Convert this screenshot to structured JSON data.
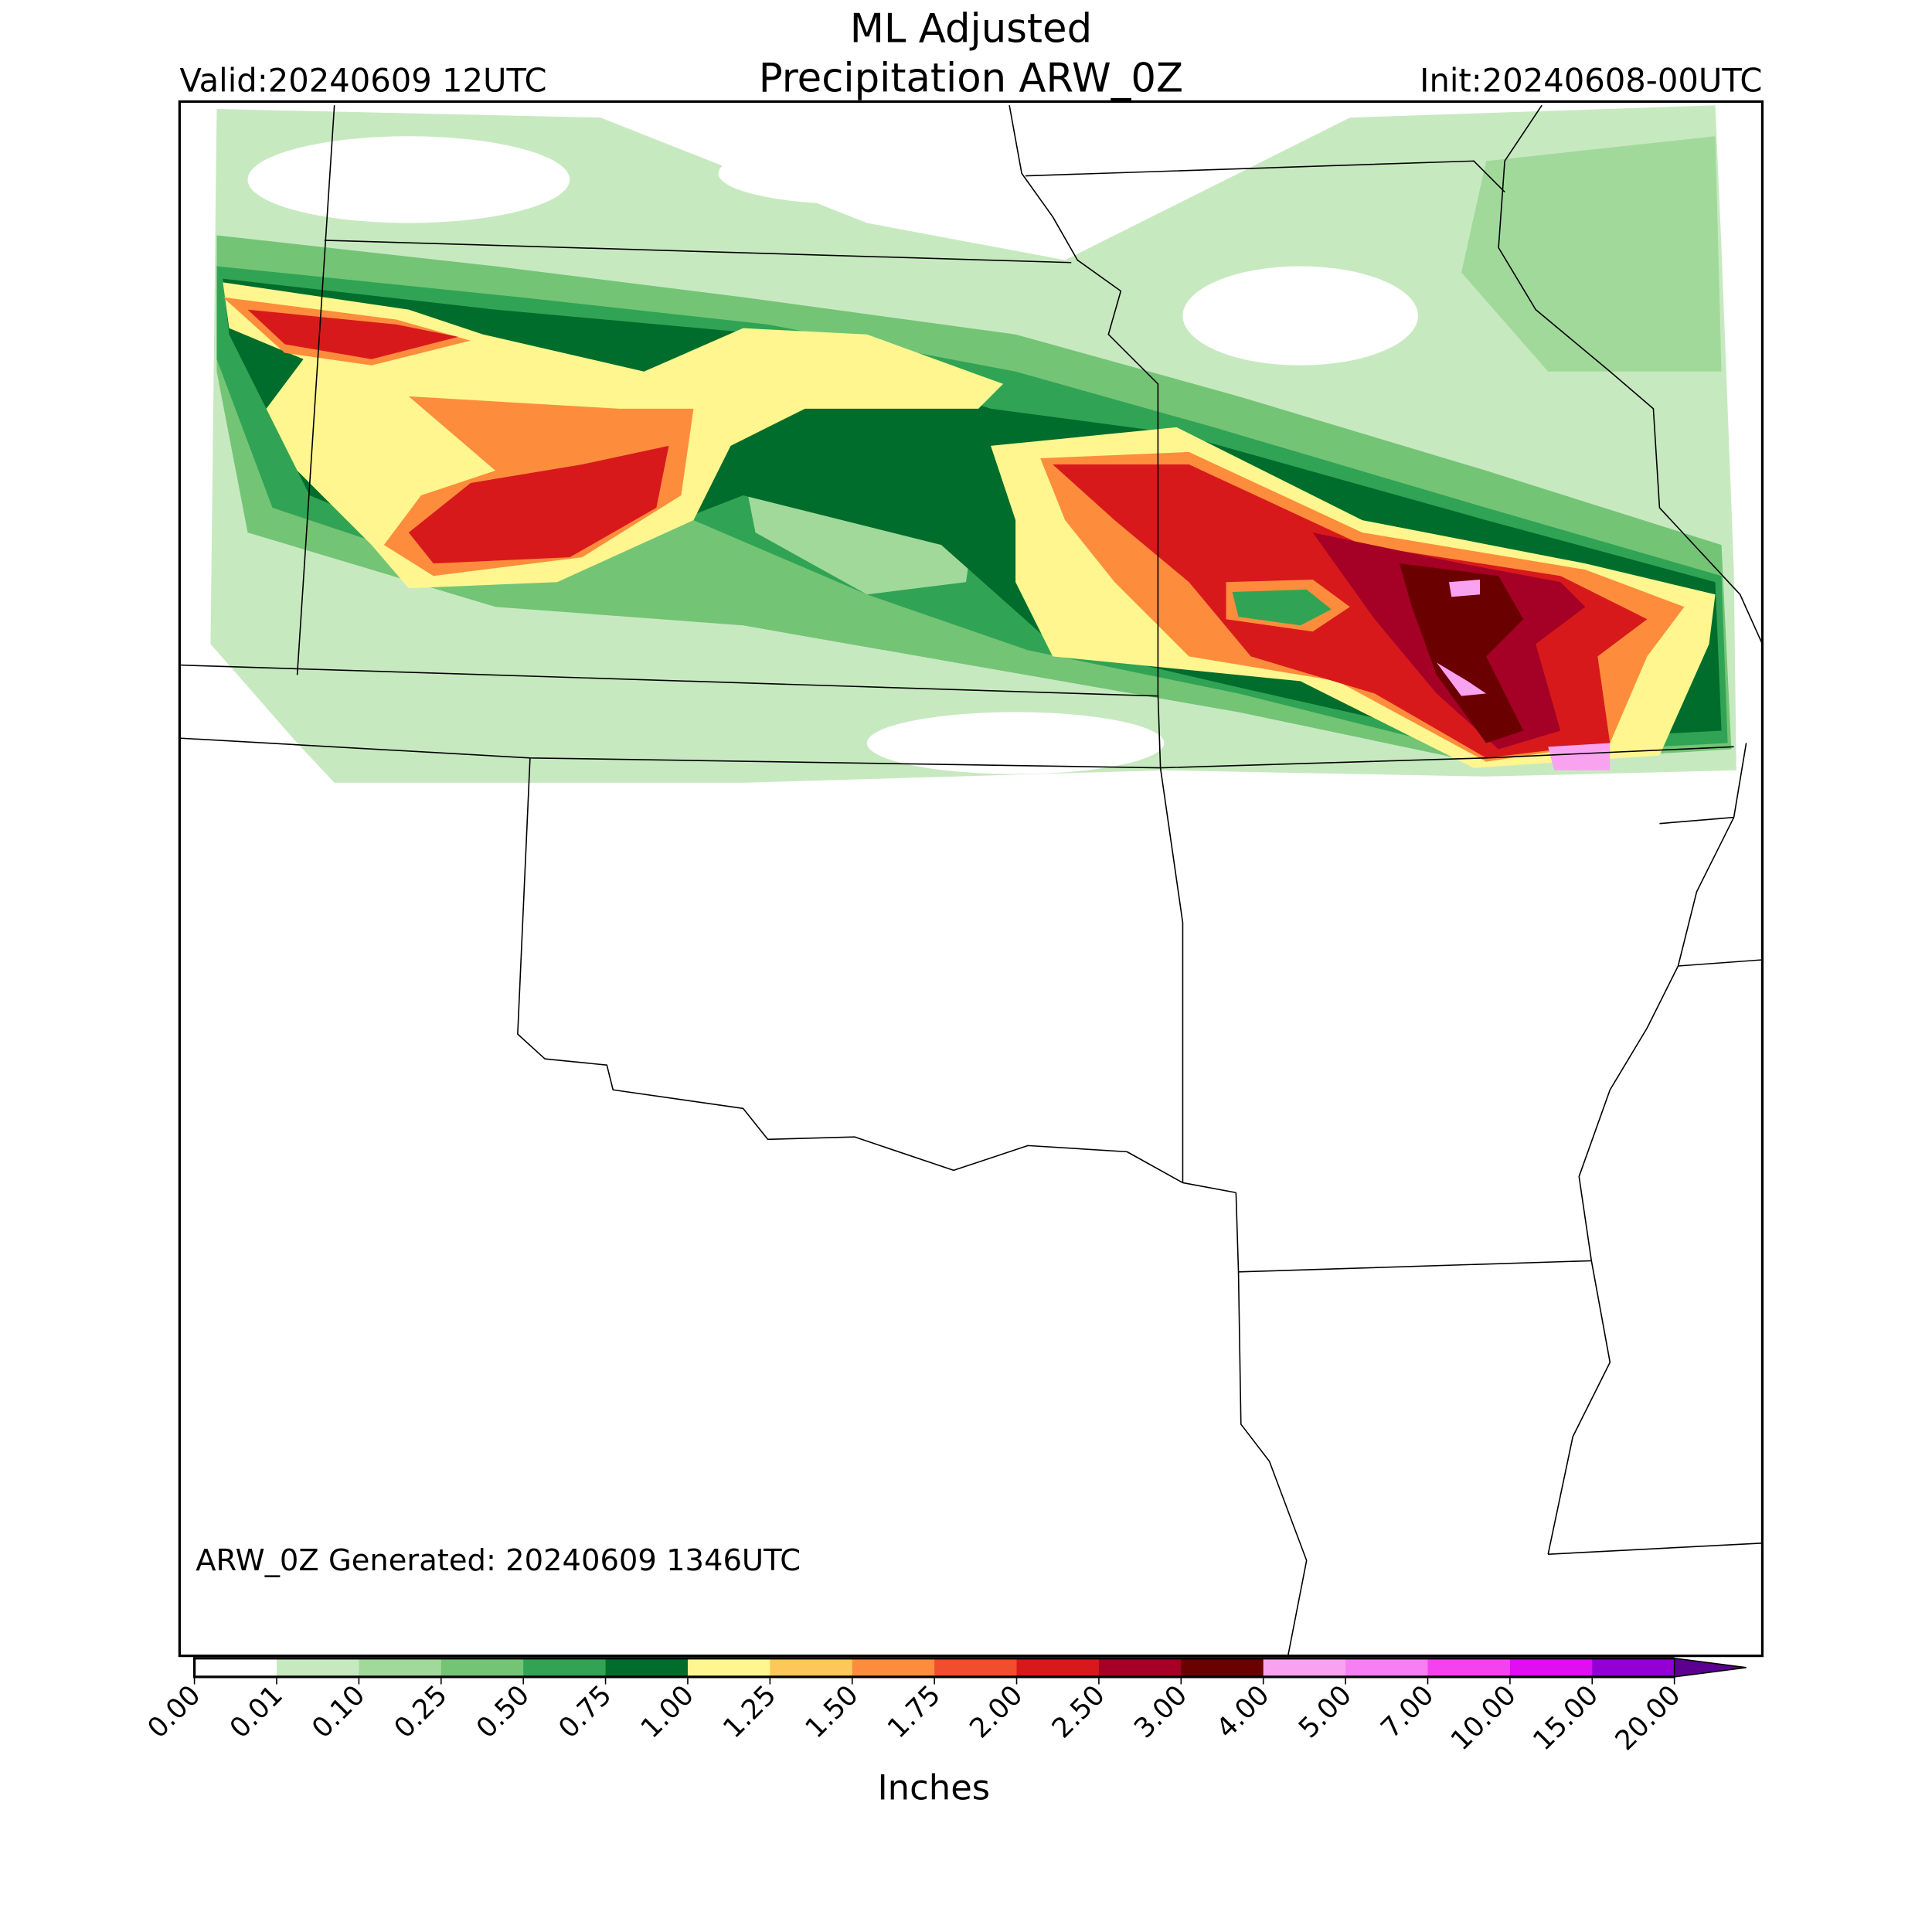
{
  "header": {
    "title_line1": "ML Adjusted",
    "title_line2": "Precipitation ARW_0Z",
    "valid": "Valid:20240609 12UTC",
    "init": "Init:20240608-00UTC"
  },
  "map": {
    "annotation": "ARW_0Z Generated: 20240609 1346UTC"
  },
  "colorbar": {
    "label": "Inches",
    "ticks": [
      "0.00",
      "0.01",
      "0.10",
      "0.25",
      "0.50",
      "0.75",
      "1.00",
      "1.25",
      "1.50",
      "1.75",
      "2.00",
      "2.50",
      "3.00",
      "4.00",
      "5.00",
      "7.00",
      "10.00",
      "15.00",
      "20.00"
    ],
    "colors": [
      "#ffffff",
      "#c7e9c0",
      "#a1d99b",
      "#74c476",
      "#31a354",
      "#006d2c",
      "#fff68f",
      "#fdc75a",
      "#fd8d3c",
      "#f04e2c",
      "#d7191c",
      "#a50026",
      "#6b0000",
      "#f9a3f0",
      "#f77ef3",
      "#f542f0",
      "#e00ef0",
      "#9400d3"
    ],
    "extend_color": "#5b0090"
  }
}
